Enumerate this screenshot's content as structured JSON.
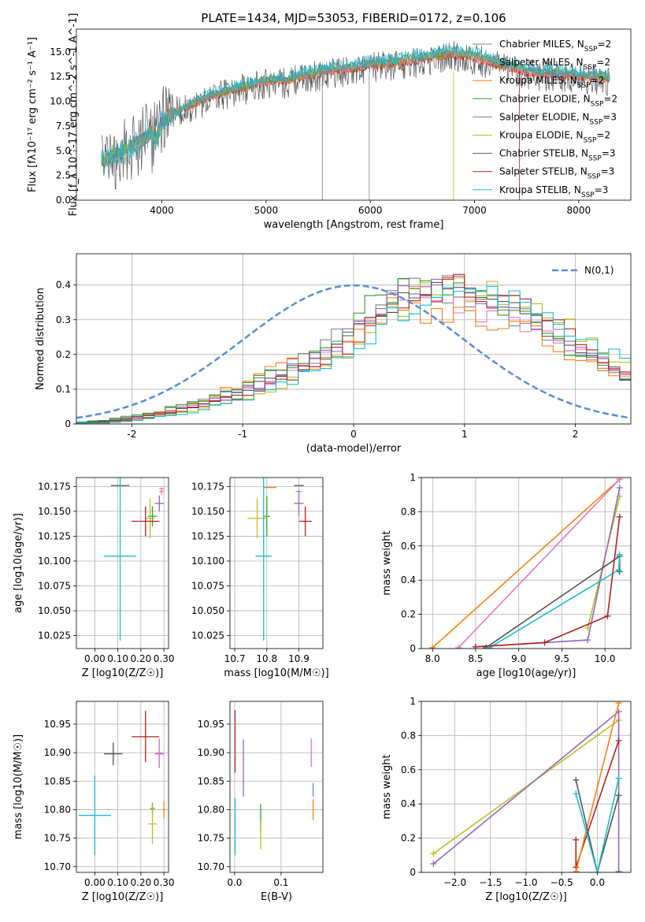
{
  "figure_title": "PLATE=1434, MJD=53053, FIBERID=0172, z=0.106",
  "colors": {
    "Chabrier MILES": "#808080",
    "Salpeter MILES": "#e377c2",
    "Kroupa MILES": "#ff7f0e",
    "Chabrier ELODIE": "#2ca02c",
    "Salpeter ELODIE": "#9467bd",
    "Kroupa ELODIE": "#bcbd22",
    "Chabrier STELIB": "#555555",
    "Salpeter STELIB": "#b22222",
    "Kroupa STELIB": "#17becf",
    "gaussian": "#5b8bd9"
  },
  "chart_data": [
    {
      "id": "spectrum",
      "type": "line",
      "title": "PLATE=1434, MJD=53053, FIBERID=0172, z=0.106",
      "xlabel": "wavelength [Angstrom, rest frame]",
      "ylabel": "Flux [f_λ 10^-17 erg cm^-2 s^-1 A^-1]",
      "xlim": [
        3180,
        8500
      ],
      "ylim": [
        0,
        17.3
      ],
      "xticks": [
        4000,
        5000,
        6000,
        7000,
        8000
      ],
      "yticks": [
        0.0,
        2.5,
        5.0,
        7.5,
        10.0,
        12.5,
        15.0
      ],
      "ytick_labels": [
        "0.0",
        "2.5",
        "5.0",
        "7.5",
        "10.0",
        "12.5",
        "15.0"
      ],
      "legend_position": "right",
      "series": [
        {
          "name": "Chabrier MILES, N_SSP=2",
          "color_key": "Chabrier MILES"
        },
        {
          "name": "Salpeter MILES, N_SSP=2",
          "color_key": "Salpeter MILES"
        },
        {
          "name": "Kroupa MILES, N_SSP=2",
          "color_key": "Kroupa MILES"
        },
        {
          "name": "Chabrier ELODIE, N_SSP=2",
          "color_key": "Chabrier ELODIE"
        },
        {
          "name": "Salpeter ELODIE, N_SSP=3",
          "color_key": "Salpeter ELODIE"
        },
        {
          "name": "Kroupa ELODIE, N_SSP=2",
          "color_key": "Kroupa ELODIE"
        },
        {
          "name": "Chabrier STELIB, N_SSP=3",
          "color_key": "Chabrier STELIB"
        },
        {
          "name": "Salpeter STELIB, N_SSP=3",
          "color_key": "Salpeter STELIB"
        },
        {
          "name": "Kroupa STELIB, N_SSP=3",
          "color_key": "Kroupa STELIB"
        }
      ],
      "observed_envelope": {
        "x": [
          3420,
          3500,
          3600,
          3700,
          3800,
          3900,
          3950,
          4000,
          4100,
          4200,
          4300,
          4400,
          4500,
          4600,
          4700,
          4800,
          4900,
          5000,
          5100,
          5200,
          5300,
          5400,
          5500,
          5600,
          5700,
          5800,
          5900,
          6000,
          6100,
          6200,
          6300,
          6400,
          6500,
          6600,
          6700,
          6800,
          6900,
          7000,
          7100,
          7200,
          7300,
          7400,
          7500,
          7600,
          7700,
          7800,
          7900,
          8000,
          8100,
          8200,
          8300
        ],
        "y": [
          4.0,
          4.2,
          4.8,
          5.4,
          6.0,
          6.8,
          6.2,
          8.0,
          8.8,
          9.3,
          9.8,
          10.2,
          10.6,
          11.0,
          11.3,
          11.5,
          11.8,
          12.1,
          12.2,
          12.1,
          12.5,
          12.7,
          12.9,
          13.2,
          13.3,
          13.4,
          13.5,
          13.8,
          13.8,
          13.9,
          14.1,
          14.2,
          14.4,
          14.6,
          14.8,
          14.9,
          14.7,
          14.6,
          14.3,
          13.9,
          13.6,
          13.4,
          13.1,
          12.9,
          12.9,
          12.8,
          12.7,
          12.6,
          12.5,
          12.5,
          12.4
        ]
      }
    },
    {
      "id": "residuals",
      "type": "line",
      "xlabel": "(data-model)/error",
      "ylabel": "Normed distribution",
      "xlim": [
        -2.5,
        2.5
      ],
      "ylim": [
        0,
        0.49
      ],
      "xticks": [
        -2,
        -1,
        0,
        1,
        2
      ],
      "yticks": [
        0.0,
        0.1,
        0.2,
        0.3,
        0.4
      ],
      "grid": true,
      "legend_position": "top-right",
      "legend": "N(0,1)",
      "gaussian": {
        "mean": 0,
        "sigma": 1,
        "peak": 0.399
      },
      "histogram_bins": [
        -2.5,
        2.5,
        0.1
      ],
      "histogram_envelope": [
        0.003,
        0.005,
        0.008,
        0.01,
        0.015,
        0.02,
        0.025,
        0.03,
        0.035,
        0.045,
        0.05,
        0.06,
        0.07,
        0.075,
        0.09,
        0.1,
        0.11,
        0.125,
        0.14,
        0.155,
        0.17,
        0.19,
        0.2,
        0.22,
        0.25,
        0.28,
        0.31,
        0.33,
        0.35,
        0.365,
        0.375,
        0.38,
        0.385,
        0.385,
        0.38,
        0.37,
        0.36,
        0.35,
        0.34,
        0.325,
        0.31,
        0.29,
        0.27,
        0.25,
        0.235,
        0.215,
        0.195,
        0.175,
        0.16,
        0.14
      ],
      "series_names": [
        "Chabrier MILES",
        "Salpeter MILES",
        "Kroupa MILES",
        "Chabrier ELODIE",
        "Salpeter ELODIE",
        "Kroupa ELODIE",
        "Chabrier STELIB",
        "Salpeter STELIB",
        "Kroupa STELIB"
      ]
    },
    {
      "id": "age_vs_Z",
      "type": "scatter",
      "xlabel": "Z [log10(Z/Z☉)]",
      "ylabel": "age  [log10(age/yr)]",
      "xlim": [
        -0.08,
        0.32
      ],
      "ylim": [
        10.012,
        10.184
      ],
      "xticks": [
        0.0,
        0.1,
        0.2,
        0.3
      ],
      "xtick_labels": [
        "0.00",
        "0.10",
        "0.20",
        "0.30"
      ],
      "yticks": [
        10.025,
        10.05,
        10.075,
        10.1,
        10.125,
        10.15,
        10.175
      ],
      "ytick_labels": [
        "10.025",
        "10.050",
        "10.075",
        "10.100",
        "10.125",
        "10.150",
        "10.175"
      ],
      "grid": true,
      "points": [
        {
          "color_key": "Chabrier STELIB",
          "x": 0.11,
          "xerr": 0.04,
          "y": 10.176,
          "yerr": 0.0
        },
        {
          "color_key": "Kroupa MILES",
          "x": 0.29,
          "xerr": 0.01,
          "y": 10.173,
          "yerr": 0.0
        },
        {
          "color_key": "Salpeter MILES",
          "x": 0.29,
          "xerr": 0.01,
          "y": 10.17,
          "yerr": 0.003
        },
        {
          "color_key": "Salpeter ELODIE",
          "x": 0.28,
          "xerr": 0.02,
          "y": 10.158,
          "yerr": 0.008
        },
        {
          "color_key": "Chabrier ELODIE",
          "x": 0.25,
          "xerr": 0.02,
          "y": 10.145,
          "yerr": 0.01
        },
        {
          "color_key": "Kroupa ELODIE",
          "x": 0.24,
          "xerr": 0.02,
          "y": 10.143,
          "yerr": 0.02
        },
        {
          "color_key": "Salpeter STELIB",
          "x": 0.22,
          "xerr": 0.06,
          "y": 10.14,
          "yerr": 0.015
        },
        {
          "color_key": "Kroupa STELIB",
          "x": 0.11,
          "xerr": 0.07,
          "y": 10.105,
          "yerr": 0.085
        }
      ]
    },
    {
      "id": "age_vs_mass",
      "type": "scatter",
      "xlabel": "mass [log10(M/M☉)]",
      "ylabel": "",
      "xlim": [
        10.685,
        10.975
      ],
      "ylim": [
        10.012,
        10.184
      ],
      "xticks": [
        10.7,
        10.8,
        10.9
      ],
      "xtick_labels": [
        "10.7",
        "10.8",
        "10.9"
      ],
      "yticks": [
        10.025,
        10.05,
        10.075,
        10.1,
        10.125,
        10.15,
        10.175
      ],
      "ytick_labels": [
        "10.025",
        "10.050",
        "10.075",
        "10.100",
        "10.125",
        "10.150",
        "10.175"
      ],
      "grid": true,
      "points": [
        {
          "color_key": "Chabrier STELIB",
          "x": 10.9,
          "xerr": 0.015,
          "y": 10.176,
          "yerr": 0.0
        },
        {
          "color_key": "Kroupa MILES",
          "x": 10.81,
          "xerr": 0.02,
          "y": 10.174,
          "yerr": 0.0
        },
        {
          "color_key": "Salpeter MILES",
          "x": 10.9,
          "xerr": 0.01,
          "y": 10.17,
          "yerr": 0.0
        },
        {
          "color_key": "Salpeter ELODIE",
          "x": 10.9,
          "xerr": 0.015,
          "y": 10.158,
          "yerr": 0.013
        },
        {
          "color_key": "Chabrier ELODIE",
          "x": 10.8,
          "xerr": 0.01,
          "y": 10.145,
          "yerr": 0.02
        },
        {
          "color_key": "Kroupa ELODIE",
          "x": 10.77,
          "xerr": 0.03,
          "y": 10.143,
          "yerr": 0.02
        },
        {
          "color_key": "Salpeter STELIB",
          "x": 10.92,
          "xerr": 0.02,
          "y": 10.14,
          "yerr": 0.015
        },
        {
          "color_key": "Kroupa STELIB",
          "x": 10.79,
          "xerr": 0.025,
          "y": 10.105,
          "yerr": 0.085
        }
      ]
    },
    {
      "id": "weight_vs_age",
      "type": "line",
      "xlabel": "age  [log10(age/yr)]",
      "ylabel": "mass weight",
      "xlim": [
        7.87,
        10.3
      ],
      "ylim": [
        0,
        1
      ],
      "xticks": [
        8.0,
        8.5,
        9.0,
        9.5,
        10.0
      ],
      "xtick_labels": [
        "8.0",
        "8.5",
        "9.0",
        "9.5",
        "10.0"
      ],
      "yticks": [
        0.0,
        0.2,
        0.4,
        0.6,
        0.8,
        1.0
      ],
      "grid": true,
      "series": [
        {
          "color_key": "Kroupa MILES",
          "x": [
            8.0,
            10.17
          ],
          "y": [
            0.005,
            0.99
          ]
        },
        {
          "color_key": "Salpeter MILES",
          "x": [
            8.3,
            10.17
          ],
          "y": [
            0.005,
            0.99
          ]
        },
        {
          "color_key": "Kroupa ELODIE",
          "x": [
            9.8,
            10.17
          ],
          "y": [
            0.12,
            0.89
          ]
        },
        {
          "color_key": "Salpeter ELODIE",
          "x": [
            8.5,
            9.8,
            10.17
          ],
          "y": [
            0.01,
            0.05,
            0.94
          ]
        },
        {
          "color_key": "Chabrier STELIB",
          "x": [
            8.62,
            10.17,
            10.17
          ],
          "y": [
            0.005,
            0.54,
            0.45
          ]
        },
        {
          "color_key": "Kroupa STELIB",
          "x": [
            8.66,
            10.16,
            10.17
          ],
          "y": [
            0.005,
            0.46,
            0.55
          ]
        },
        {
          "color_key": "Salpeter STELIB",
          "x": [
            8.5,
            9.3,
            10.03,
            10.17
          ],
          "y": [
            0.01,
            0.035,
            0.19,
            0.77
          ]
        }
      ]
    },
    {
      "id": "mass_vs_Z",
      "type": "scatter",
      "xlabel": "Z [log10(Z/Z☉)]",
      "ylabel": "mass [log10(M/M☉)]",
      "xlim": [
        -0.08,
        0.32
      ],
      "ylim": [
        10.69,
        10.99
      ],
      "xticks": [
        0.0,
        0.1,
        0.2,
        0.3
      ],
      "xtick_labels": [
        "0.00",
        "0.10",
        "0.20",
        "0.30"
      ],
      "yticks": [
        10.7,
        10.75,
        10.8,
        10.85,
        10.9,
        10.95
      ],
      "ytick_labels": [
        "10.70",
        "10.75",
        "10.80",
        "10.85",
        "10.90",
        "10.95"
      ],
      "grid": true,
      "points": [
        {
          "color_key": "Salpeter STELIB",
          "x": 0.22,
          "xerr": 0.06,
          "y": 10.928,
          "yerr": 0.045
        },
        {
          "color_key": "Chabrier STELIB",
          "x": 0.08,
          "xerr": 0.04,
          "y": 10.898,
          "yerr": 0.02
        },
        {
          "color_key": "Salpeter ELODIE",
          "x": 0.28,
          "xerr": 0.02,
          "y": 10.898,
          "yerr": 0.025
        },
        {
          "color_key": "Salpeter MILES",
          "x": 0.28,
          "xerr": 0.01,
          "y": 10.9,
          "yerr": 0.025
        },
        {
          "color_key": "Kroupa STELIB",
          "x": 0.0,
          "xerr": 0.07,
          "y": 10.79,
          "yerr": 0.07
        },
        {
          "color_key": "Chabrier ELODIE",
          "x": 0.25,
          "xerr": 0.01,
          "y": 10.802,
          "yerr": 0.01
        },
        {
          "color_key": "Kroupa ELODIE",
          "x": 0.25,
          "xerr": 0.02,
          "y": 10.775,
          "yerr": 0.035
        },
        {
          "color_key": "Kroupa MILES",
          "x": 0.3,
          "xerr": 0.005,
          "y": 10.8,
          "yerr": 0.015
        }
      ]
    },
    {
      "id": "mass_vs_ebv",
      "type": "scatter",
      "xlabel": "E(B-V)",
      "ylabel": "",
      "xlim": [
        -0.01,
        0.19
      ],
      "ylim": [
        10.69,
        10.99
      ],
      "xticks": [
        0.0,
        0.1
      ],
      "xtick_labels": [
        "0.0",
        "0.1"
      ],
      "yticks": [
        10.7,
        10.75,
        10.8,
        10.85,
        10.9,
        10.95
      ],
      "ytick_labels": [
        "10.70",
        "10.75",
        "10.80",
        "10.85",
        "10.90",
        "10.95"
      ],
      "grid": true,
      "points": [
        {
          "color_key": "Salpeter STELIB",
          "x": 0.001,
          "y": 10.92,
          "yerr": 0.055
        },
        {
          "color_key": "Salpeter ELODIE",
          "x": 0.019,
          "y": 10.873,
          "yerr": 0.05
        },
        {
          "color_key": "Kroupa STELIB",
          "x": 0.001,
          "y": 10.77,
          "yerr": 0.05
        },
        {
          "color_key": "Chabrier ELODIE",
          "x": 0.056,
          "y": 10.785,
          "yerr": 0.025
        },
        {
          "color_key": "Kroupa ELODIE",
          "x": 0.056,
          "y": 10.755,
          "yerr": 0.025
        },
        {
          "color_key": "Salpeter MILES",
          "x": 0.165,
          "y": 10.9,
          "yerr": 0.025
        },
        {
          "color_key": "Kroupa MILES",
          "x": 0.169,
          "y": 10.8,
          "yerr": 0.018
        },
        {
          "color_key": "Gaussian blue",
          "x": 0.169,
          "y": 10.835,
          "yerr": 0.012
        }
      ]
    },
    {
      "id": "weight_vs_Z",
      "type": "line",
      "xlabel": "Z [log10(Z/Z☉)]",
      "ylabel": "mass weight",
      "xlim": [
        -2.47,
        0.47
      ],
      "ylim": [
        0,
        1
      ],
      "xticks": [
        -2.0,
        -1.5,
        -1.0,
        -0.5,
        0.0
      ],
      "xtick_labels": [
        "−2.0",
        "−1.5",
        "−1.0",
        "−0.5",
        "0.0"
      ],
      "yticks": [
        0.0,
        0.2,
        0.4,
        0.6,
        0.8,
        1.0
      ],
      "grid": true,
      "series": [
        {
          "color_key": "Kroupa ELODIE",
          "x": [
            -2.3,
            0.3
          ],
          "y": [
            0.11,
            0.89
          ]
        },
        {
          "color_key": "Salpeter ELODIE",
          "x": [
            -2.3,
            0.3,
            0.3
          ],
          "y": [
            0.05,
            0.94,
            0.005
          ]
        },
        {
          "color_key": "Salpeter STELIB",
          "x": [
            -0.3,
            -0.3,
            0.3
          ],
          "y": [
            0.19,
            0.03,
            0.77
          ]
        },
        {
          "color_key": "Kroupa MILES",
          "x": [
            -0.3,
            0.3
          ],
          "y": [
            0.005,
            0.99
          ]
        },
        {
          "color_key": "Chabrier STELIB",
          "x": [
            -0.3,
            0.0,
            0.3
          ],
          "y": [
            0.54,
            0.0,
            0.45
          ]
        },
        {
          "color_key": "Kroupa STELIB",
          "x": [
            -0.3,
            0.0,
            0.3
          ],
          "y": [
            0.46,
            0.0,
            0.55
          ]
        }
      ]
    }
  ]
}
